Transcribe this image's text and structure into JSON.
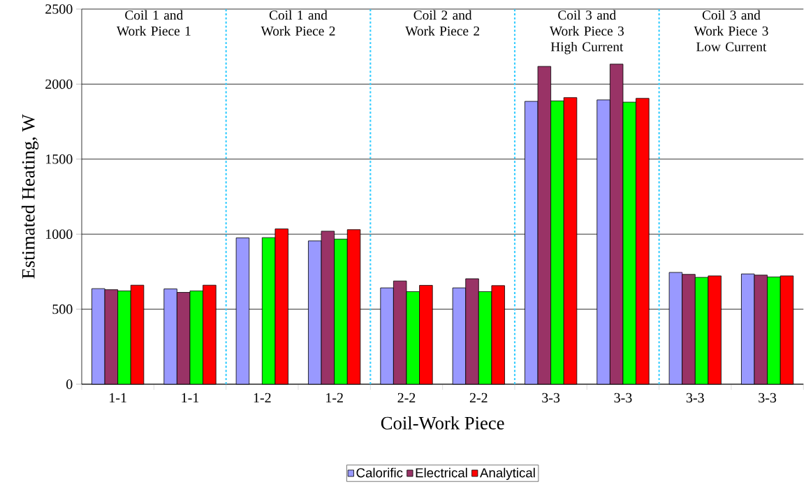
{
  "chart_data": {
    "type": "bar",
    "xlabel": "Coil-Work Piece",
    "ylabel": "Estimated Heating, W",
    "categories": [
      "1-1",
      "1-1",
      "1-2",
      "1-2",
      "2-2",
      "2-2",
      "3-3",
      "3-3",
      "3-3",
      "3-3"
    ],
    "series": [
      {
        "name": "Calorific",
        "color": "#9999ff",
        "values": [
          637,
          635,
          975,
          955,
          642,
          642,
          1885,
          1895,
          745,
          735
        ]
      },
      {
        "name": "Electrical",
        "color": "#993366",
        "values": [
          630,
          612,
          null,
          1020,
          688,
          703,
          2118,
          2133,
          732,
          727
        ]
      },
      {
        "color": "#00ff00",
        "values": [
          622,
          622,
          977,
          967,
          617,
          617,
          1888,
          1880,
          712,
          715
        ]
      },
      {
        "name": "Analytical",
        "color": "#ff0000",
        "values": [
          660,
          660,
          1035,
          1030,
          659,
          657,
          1910,
          1905,
          722,
          722
        ]
      }
    ],
    "ylim": [
      0,
      2500
    ],
    "yticks": [
      0,
      500,
      1000,
      1500,
      2000,
      2500
    ],
    "grid": "y",
    "legend": "bottom",
    "annotations": [
      "Coil 1 and Work Piece 1",
      "Coil 1 and Work Piece 2",
      "Coil 2 and Work Piece 2",
      "Coil 3 and Work Piece 3 High Current",
      "Coil 3 and Work Piece 3 Low Current"
    ]
  }
}
